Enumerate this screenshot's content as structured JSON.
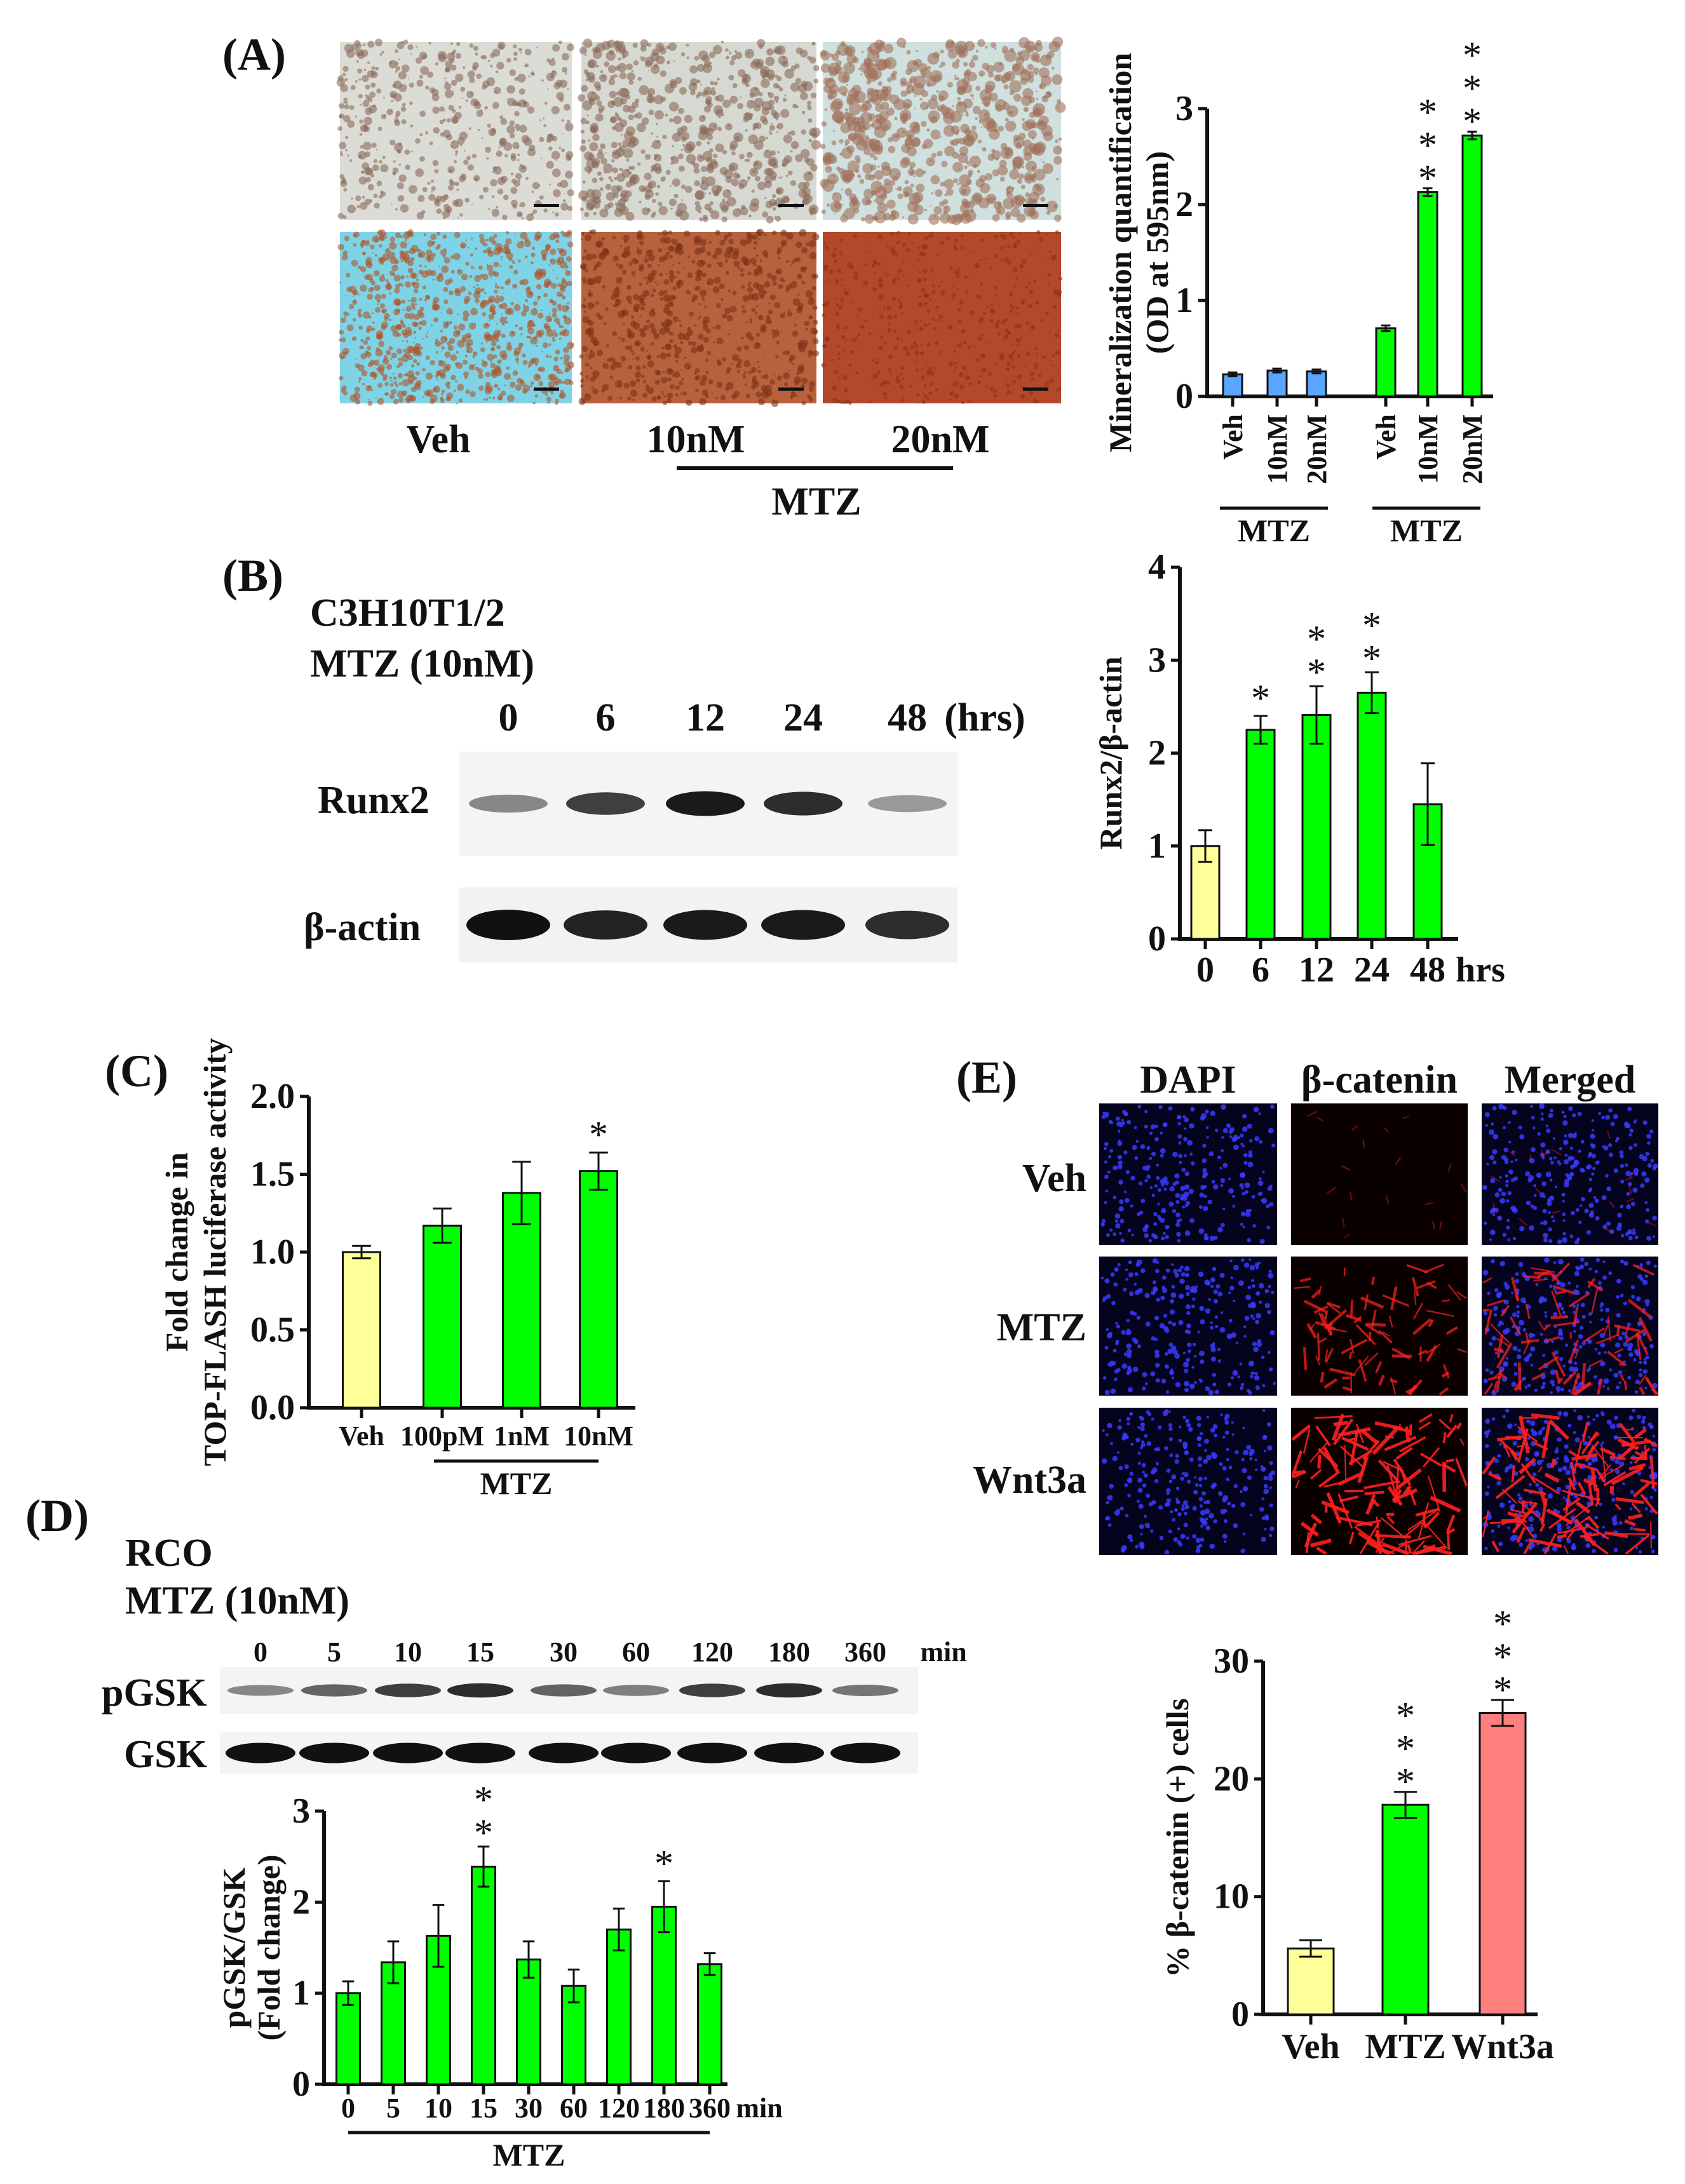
{
  "panels": {
    "A": {
      "label": "(A)",
      "image_labels": [
        "Veh",
        "10nM",
        "20nM"
      ],
      "group_label": "MTZ"
    },
    "B": {
      "label": "(B)",
      "cell_line": "C3H10T1/2",
      "treatment": "MTZ (10nM)",
      "lanes": [
        "0",
        "6",
        "12",
        "24",
        "48"
      ],
      "lane_unit": "(hrs)",
      "rows": [
        "Runx2",
        "β-actin"
      ]
    },
    "C": {
      "label": "(C)"
    },
    "D": {
      "label": "(D)",
      "cell_line": "RCO",
      "treatment": "MTZ (10nM)",
      "lanes": [
        "0",
        "5",
        "10",
        "15",
        "30",
        "60",
        "120",
        "180",
        "360"
      ],
      "lane_unit": "min",
      "rows": [
        "pGSK",
        "GSK"
      ]
    },
    "E": {
      "label": "(E)",
      "columns": [
        "DAPI",
        "β-catenin",
        "Merged"
      ],
      "rows": [
        "Veh",
        "MTZ",
        "Wnt3a"
      ]
    }
  },
  "chart_data": [
    {
      "id": "A",
      "type": "bar",
      "ylabel": [
        "Mineralization quantification",
        "(OD at 595nm)"
      ],
      "ylim": [
        0,
        3
      ],
      "yticks": [
        "0",
        "1",
        "2",
        "3"
      ],
      "categories": [
        "Veh",
        "10nM",
        "20nM",
        "Veh",
        "10nM",
        "20nM"
      ],
      "values": [
        0.23,
        0.27,
        0.26,
        0.71,
        2.13,
        2.72
      ],
      "errors": [
        0.02,
        0.02,
        0.02,
        0.03,
        0.04,
        0.04
      ],
      "significance": [
        "",
        "",
        "",
        "",
        "***",
        "***"
      ],
      "colors": [
        "#5aa5ff",
        "#5aa5ff",
        "#5aa5ff",
        "#00ff00",
        "#00ff00",
        "#00ff00"
      ],
      "group_labels": [
        "MTZ",
        "MTZ"
      ]
    },
    {
      "id": "B",
      "type": "bar",
      "ylabel": [
        "Runx2/β-actin"
      ],
      "ylim": [
        0,
        4
      ],
      "yticks": [
        "0",
        "1",
        "2",
        "3",
        "4"
      ],
      "categories": [
        "0",
        "6",
        "12",
        "24",
        "48"
      ],
      "x_unit": "hrs",
      "values": [
        1.0,
        2.25,
        2.41,
        2.65,
        1.45
      ],
      "errors": [
        0.17,
        0.15,
        0.31,
        0.22,
        0.44
      ],
      "significance": [
        "",
        "*",
        "**",
        "**",
        ""
      ],
      "colors": [
        "#ffff99",
        "#00ff00",
        "#00ff00",
        "#00ff00",
        "#00ff00"
      ]
    },
    {
      "id": "C",
      "type": "bar",
      "ylabel": [
        "Fold change in",
        "TOP-FLASH luciferase activity"
      ],
      "ylim": [
        0,
        2.0
      ],
      "yticks": [
        "0.0",
        "0.5",
        "1.0",
        "1.5",
        "2.0"
      ],
      "categories": [
        "Veh",
        "100pM",
        "1nM",
        "10nM"
      ],
      "values": [
        1.0,
        1.17,
        1.38,
        1.52
      ],
      "errors": [
        0.04,
        0.11,
        0.2,
        0.12
      ],
      "significance": [
        "",
        "",
        "",
        "*"
      ],
      "colors": [
        "#ffff99",
        "#00ff00",
        "#00ff00",
        "#00ff00"
      ],
      "group_labels": [
        "MTZ"
      ]
    },
    {
      "id": "D",
      "type": "bar",
      "ylabel": [
        "pGSK/GSK",
        "(Fold change)"
      ],
      "ylim": [
        0,
        3
      ],
      "yticks": [
        "0",
        "1",
        "2",
        "3"
      ],
      "categories": [
        "0",
        "5",
        "10",
        "15",
        "30",
        "60",
        "120",
        "180",
        "360"
      ],
      "x_unit": "min",
      "values": [
        1.0,
        1.34,
        1.63,
        2.39,
        1.37,
        1.08,
        1.7,
        1.95,
        1.32
      ],
      "errors": [
        0.13,
        0.23,
        0.34,
        0.22,
        0.2,
        0.18,
        0.23,
        0.28,
        0.12
      ],
      "significance": [
        "",
        "",
        "",
        "**",
        "",
        "",
        "",
        "*",
        ""
      ],
      "colors": [
        "#00ff00",
        "#00ff00",
        "#00ff00",
        "#00ff00",
        "#00ff00",
        "#00ff00",
        "#00ff00",
        "#00ff00",
        "#00ff00"
      ],
      "group_labels": [
        "MTZ"
      ]
    },
    {
      "id": "E",
      "type": "bar",
      "ylabel": [
        "% β-catenin (+) cells"
      ],
      "ylim": [
        0,
        30
      ],
      "yticks": [
        "0",
        "10",
        "20",
        "30"
      ],
      "categories": [
        "Veh",
        "MTZ",
        "Wnt3a"
      ],
      "values": [
        5.6,
        17.8,
        25.6
      ],
      "errors": [
        0.7,
        1.1,
        1.1
      ],
      "significance": [
        "",
        "***",
        "***"
      ],
      "colors": [
        "#ffff99",
        "#00ff00",
        "#ff7f7f"
      ]
    }
  ]
}
